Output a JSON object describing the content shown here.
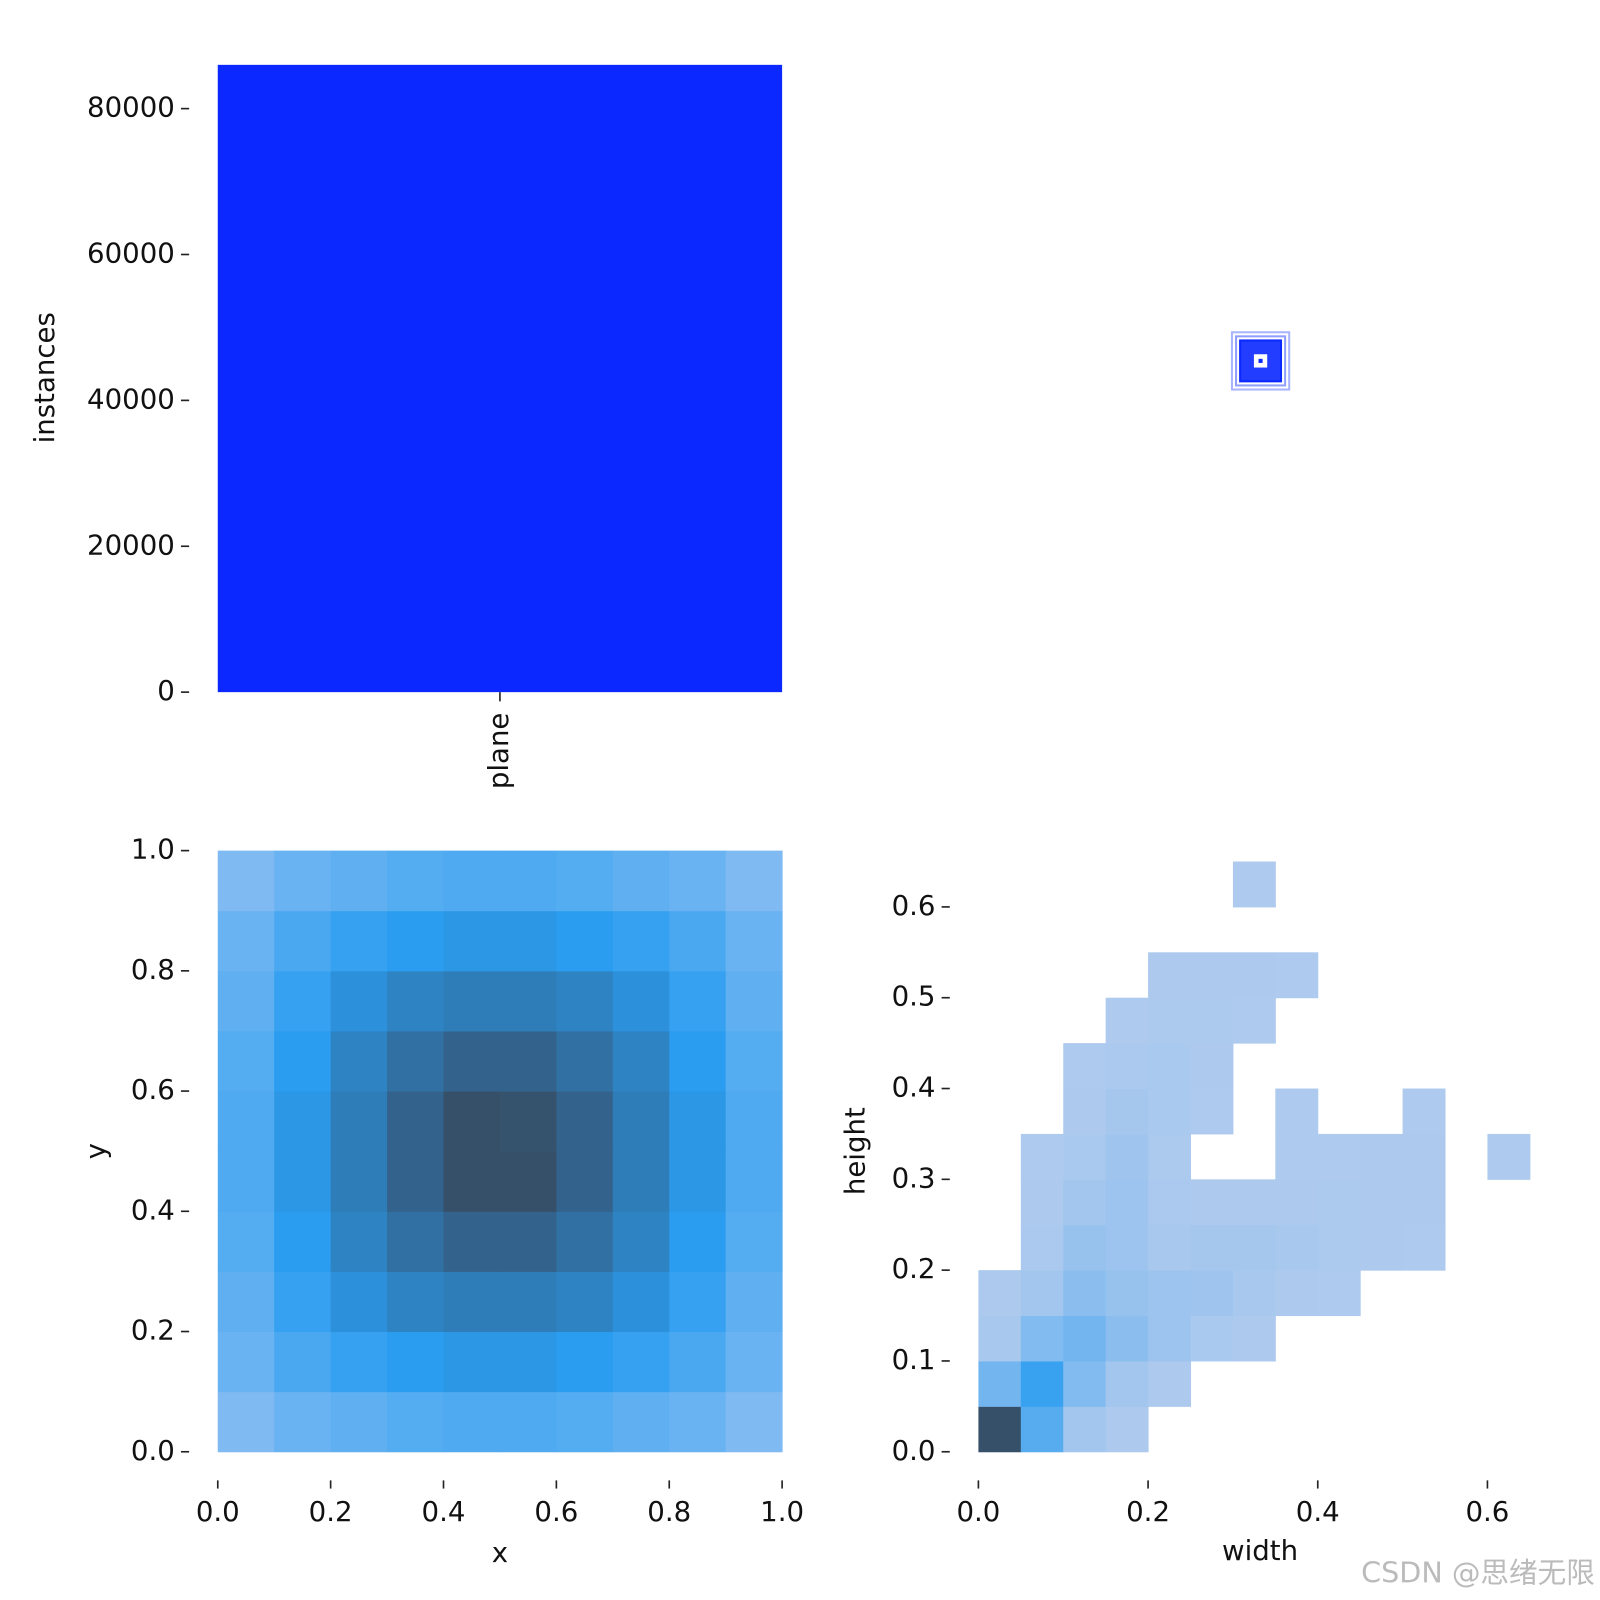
{
  "chart_data": [
    {
      "type": "bar",
      "ylabel": "instances",
      "categories": [
        "plane"
      ],
      "values": [
        86000
      ],
      "color": "#0a28ff",
      "ylim": [
        0,
        86200
      ],
      "yticks": [
        0,
        20000,
        40000,
        60000,
        80000
      ]
    },
    {
      "type": "histogram2d",
      "xlabel": "x",
      "ylabel": "y",
      "xbins": [
        0,
        0.1,
        0.2,
        0.3,
        0.4,
        0.5,
        0.6,
        0.7,
        0.8,
        0.9,
        1.0
      ],
      "ybins": [
        0,
        0.1,
        0.2,
        0.3,
        0.4,
        0.5,
        0.6,
        0.7,
        0.8,
        0.9,
        1.0
      ],
      "counts": [
        [
          20,
          30,
          35,
          40,
          42,
          42,
          40,
          35,
          30,
          20
        ],
        [
          30,
          45,
          55,
          60,
          65,
          65,
          60,
          55,
          45,
          30
        ],
        [
          35,
          55,
          70,
          80,
          85,
          85,
          80,
          70,
          55,
          35
        ],
        [
          40,
          60,
          80,
          95,
          105,
          105,
          95,
          80,
          60,
          40
        ],
        [
          42,
          65,
          85,
          105,
          120,
          120,
          105,
          85,
          65,
          42
        ],
        [
          42,
          65,
          85,
          105,
          120,
          118,
          105,
          85,
          65,
          42
        ],
        [
          40,
          60,
          80,
          95,
          105,
          105,
          95,
          80,
          60,
          40
        ],
        [
          35,
          55,
          70,
          80,
          85,
          85,
          80,
          70,
          55,
          35
        ],
        [
          30,
          45,
          55,
          60,
          65,
          65,
          60,
          55,
          45,
          30
        ],
        [
          20,
          30,
          35,
          40,
          42,
          42,
          40,
          35,
          30,
          20
        ]
      ],
      "colormap": [
        "#a9c9f3",
        "#2a9df0",
        "#36506a"
      ],
      "xlim": [
        0,
        1
      ],
      "ylim": [
        0,
        1
      ],
      "xticks": [
        {
          "value": 0,
          "label": "0.0"
        },
        0.2,
        0.4,
        0.6,
        0.8,
        {
          "value": 1,
          "label": "1.0"
        }
      ],
      "yticks": [
        {
          "value": 0,
          "label": "0.0"
        },
        0.2,
        0.4,
        0.6,
        0.8,
        {
          "value": 1,
          "label": "1.0"
        }
      ]
    },
    {
      "type": "histogram2d",
      "xlabel": "width",
      "ylabel": "height",
      "xbins": [
        0,
        0.05,
        0.1,
        0.15,
        0.2,
        0.25,
        0.3,
        0.35,
        0.4,
        0.45,
        0.5,
        0.55,
        0.6,
        0.65
      ],
      "ybins": [
        0,
        0.05,
        0.1,
        0.15,
        0.2,
        0.25,
        0.3,
        0.35,
        0.4,
        0.45,
        0.5,
        0.55,
        0.6,
        0.65
      ],
      "counts": [
        [
          900,
          300,
          40,
          5,
          0,
          0,
          0,
          0,
          0,
          0,
          0,
          0,
          0
        ],
        [
          200,
          400,
          150,
          40,
          5,
          0,
          0,
          0,
          0,
          0,
          0,
          0,
          0
        ],
        [
          20,
          150,
          200,
          120,
          60,
          15,
          2,
          0,
          0,
          0,
          0,
          0,
          0
        ],
        [
          2,
          40,
          120,
          80,
          60,
          50,
          20,
          5,
          1,
          0,
          0,
          0,
          0
        ],
        [
          0,
          10,
          80,
          60,
          20,
          30,
          30,
          20,
          8,
          2,
          1,
          0,
          0
        ],
        [
          0,
          2,
          40,
          60,
          10,
          3,
          3,
          4,
          6,
          4,
          3,
          0,
          0
        ],
        [
          0,
          1,
          15,
          50,
          8,
          0,
          0,
          1,
          1,
          2,
          2,
          0,
          1
        ],
        [
          0,
          0,
          3,
          30,
          15,
          1,
          0,
          1,
          0,
          0,
          1,
          0,
          0
        ],
        [
          0,
          0,
          1,
          10,
          15,
          2,
          0,
          0,
          0,
          0,
          0,
          0,
          0
        ],
        [
          0,
          0,
          0,
          1,
          6,
          6,
          1,
          0,
          0,
          0,
          0,
          0,
          0
        ],
        [
          0,
          0,
          0,
          0,
          2,
          3,
          2,
          1,
          0,
          0,
          0,
          0,
          0
        ],
        [
          0,
          0,
          0,
          0,
          0,
          0,
          0,
          0,
          0,
          0,
          0,
          0,
          0
        ],
        [
          0,
          0,
          0,
          0,
          0,
          0,
          1,
          0,
          0,
          0,
          0,
          0,
          0
        ]
      ],
      "colormap": [
        "#aecaee",
        "#2a9df0",
        "#36506a"
      ],
      "xlim": [
        0,
        0.664
      ],
      "ylim": [
        0,
        0.662
      ],
      "xticks": [
        {
          "value": 0,
          "label": "0.0"
        },
        0.2,
        0.4,
        0.6
      ],
      "yticks": [
        {
          "value": 0,
          "label": "0.0"
        },
        0.1,
        0.2,
        0.3,
        0.4,
        0.5,
        0.6
      ]
    }
  ],
  "watermark": "CSDN @思绪无限"
}
